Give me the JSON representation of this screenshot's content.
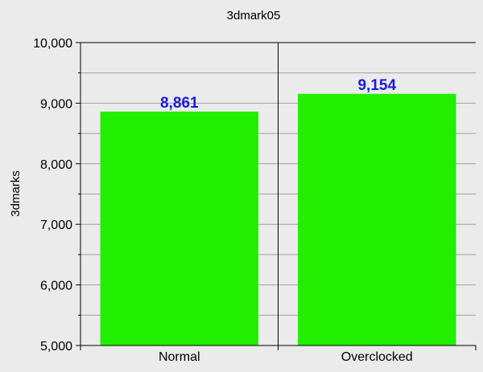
{
  "chart_data": {
    "type": "bar",
    "title": "3dmark05",
    "xlabel": "",
    "ylabel": "3dmarks",
    "categories": [
      "Normal",
      "Overclocked"
    ],
    "values": [
      8861,
      9154
    ],
    "value_labels": [
      "8,861",
      "9,154"
    ],
    "ylim": [
      5000,
      10000
    ],
    "yticks": [
      5000,
      6000,
      7000,
      8000,
      9000,
      10000
    ],
    "ytick_labels": [
      "5,000",
      "6,000",
      "7,000",
      "8,000",
      "9,000",
      "10,000"
    ],
    "grid": true,
    "legend": "none",
    "colors": {
      "bar": "#22ee00",
      "data_label": "#1a1adc",
      "background": "#ebebeb",
      "gridline": "#a0a0a0",
      "axis": "#000000"
    }
  }
}
